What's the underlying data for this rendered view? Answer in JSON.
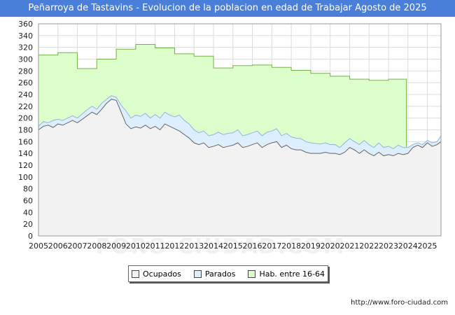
{
  "header": {
    "title": "Peñarroya de Tastavins - Evolucion de la poblacion en edad de Trabajar Agosto de 2025"
  },
  "footer": {
    "url": "http://www.foro-ciudad.com",
    "watermark": "FORO-CIUDAD.COM"
  },
  "colors": {
    "ocupados": "#f2f2f2",
    "parados": "#ddeeff",
    "hab": "#ddffcc",
    "ocupados_line": "#666666",
    "parados_line": "#8fb6e0",
    "hab_line": "#77b04a"
  },
  "chart_data": {
    "type": "area",
    "title": "Peñarroya de Tastavins - Evolucion de la poblacion en edad de Trabajar Agosto de 2025",
    "xlabel": "",
    "ylabel": "",
    "xlim": [
      2005,
      2025.7
    ],
    "ylim": [
      0,
      360
    ],
    "yticks": [
      0,
      20,
      40,
      60,
      80,
      100,
      120,
      140,
      160,
      180,
      200,
      220,
      240,
      260,
      280,
      300,
      320,
      340,
      360
    ],
    "xticks": [
      "2005",
      "2006",
      "2007",
      "2008",
      "2009",
      "2010",
      "2011",
      "2012",
      "2013",
      "2014",
      "2015",
      "2016",
      "2017",
      "2018",
      "2019",
      "2020",
      "2021",
      "2022",
      "2023",
      "2024",
      "2025"
    ],
    "grid": true,
    "legend": [
      {
        "key": "ocupados",
        "label": "Ocupados"
      },
      {
        "key": "parados",
        "label": "Parados"
      },
      {
        "key": "hab",
        "label": "Hab. entre 16-64"
      }
    ],
    "hab_steps": [
      {
        "from": 2005,
        "to": 2006,
        "value": 307
      },
      {
        "from": 2006,
        "to": 2007,
        "value": 311
      },
      {
        "from": 2007,
        "to": 2008,
        "value": 284
      },
      {
        "from": 2008,
        "to": 2009,
        "value": 300
      },
      {
        "from": 2009,
        "to": 2010,
        "value": 317
      },
      {
        "from": 2010,
        "to": 2011,
        "value": 325
      },
      {
        "from": 2011,
        "to": 2012,
        "value": 319
      },
      {
        "from": 2012,
        "to": 2013,
        "value": 309
      },
      {
        "from": 2013,
        "to": 2014,
        "value": 305
      },
      {
        "from": 2014,
        "to": 2015,
        "value": 285
      },
      {
        "from": 2015,
        "to": 2016,
        "value": 289
      },
      {
        "from": 2016,
        "to": 2017,
        "value": 290
      },
      {
        "from": 2017,
        "to": 2018,
        "value": 286
      },
      {
        "from": 2018,
        "to": 2019,
        "value": 281
      },
      {
        "from": 2019,
        "to": 2020,
        "value": 276
      },
      {
        "from": 2020,
        "to": 2021,
        "value": 271
      },
      {
        "from": 2021,
        "to": 2022,
        "value": 266
      },
      {
        "from": 2022,
        "to": 2023,
        "value": 264
      },
      {
        "from": 2023,
        "to": 2023.92,
        "value": 266
      }
    ],
    "parados_series": {
      "x": [
        2005.0,
        2005.25,
        2005.5,
        2005.75,
        2006.0,
        2006.25,
        2006.5,
        2006.75,
        2007.0,
        2007.25,
        2007.5,
        2007.75,
        2008.0,
        2008.25,
        2008.5,
        2008.75,
        2009.0,
        2009.25,
        2009.5,
        2009.75,
        2010.0,
        2010.25,
        2010.5,
        2010.75,
        2011.0,
        2011.25,
        2011.5,
        2011.75,
        2012.0,
        2012.25,
        2012.5,
        2012.75,
        2013.0,
        2013.25,
        2013.5,
        2013.75,
        2014.0,
        2014.25,
        2014.5,
        2014.75,
        2015.0,
        2015.25,
        2015.5,
        2015.75,
        2016.0,
        2016.25,
        2016.5,
        2016.75,
        2017.0,
        2017.25,
        2017.5,
        2017.75,
        2018.0,
        2018.25,
        2018.5,
        2018.75,
        2019.0,
        2019.25,
        2019.5,
        2019.75,
        2020.0,
        2020.25,
        2020.5,
        2020.75,
        2021.0,
        2021.25,
        2021.5,
        2021.75,
        2022.0,
        2022.25,
        2022.5,
        2022.75,
        2023.0,
        2023.25,
        2023.5,
        2023.75,
        2024.0,
        2024.25,
        2024.5,
        2024.75,
        2025.0,
        2025.25,
        2025.5,
        2025.7
      ],
      "values": [
        186,
        194,
        192,
        196,
        198,
        196,
        200,
        204,
        200,
        207,
        214,
        220,
        215,
        225,
        232,
        238,
        235,
        222,
        212,
        200,
        205,
        203,
        208,
        200,
        206,
        200,
        210,
        205,
        202,
        205,
        196,
        190,
        180,
        175,
        178,
        170,
        172,
        176,
        172,
        174,
        175,
        180,
        170,
        172,
        175,
        178,
        170,
        176,
        178,
        182,
        170,
        174,
        168,
        166,
        165,
        160,
        158,
        157,
        156,
        158,
        155,
        155,
        150,
        158,
        165,
        160,
        155,
        162,
        155,
        150,
        158,
        150,
        152,
        148,
        154,
        150,
        150,
        155,
        158,
        155,
        162,
        158,
        160,
        170
      ]
    },
    "ocupados_series": {
      "x": [
        2005.0,
        2005.25,
        2005.5,
        2005.75,
        2006.0,
        2006.25,
        2006.5,
        2006.75,
        2007.0,
        2007.25,
        2007.5,
        2007.75,
        2008.0,
        2008.25,
        2008.5,
        2008.75,
        2009.0,
        2009.25,
        2009.5,
        2009.75,
        2010.0,
        2010.25,
        2010.5,
        2010.75,
        2011.0,
        2011.25,
        2011.5,
        2011.75,
        2012.0,
        2012.25,
        2012.5,
        2012.75,
        2013.0,
        2013.25,
        2013.5,
        2013.75,
        2014.0,
        2014.25,
        2014.5,
        2014.75,
        2015.0,
        2015.25,
        2015.5,
        2015.75,
        2016.0,
        2016.25,
        2016.5,
        2016.75,
        2017.0,
        2017.25,
        2017.5,
        2017.75,
        2018.0,
        2018.25,
        2018.5,
        2018.75,
        2019.0,
        2019.25,
        2019.5,
        2019.75,
        2020.0,
        2020.25,
        2020.5,
        2020.75,
        2021.0,
        2021.25,
        2021.5,
        2021.75,
        2022.0,
        2022.25,
        2022.5,
        2022.75,
        2023.0,
        2023.25,
        2023.5,
        2023.75,
        2024.0,
        2024.25,
        2024.5,
        2024.75,
        2025.0,
        2025.25,
        2025.5,
        2025.7
      ],
      "values": [
        180,
        186,
        188,
        184,
        190,
        188,
        192,
        196,
        192,
        198,
        204,
        210,
        206,
        215,
        225,
        232,
        230,
        210,
        190,
        182,
        185,
        183,
        188,
        182,
        186,
        180,
        190,
        186,
        182,
        178,
        172,
        166,
        158,
        155,
        158,
        150,
        152,
        155,
        150,
        152,
        154,
        158,
        150,
        152,
        155,
        158,
        150,
        155,
        158,
        160,
        150,
        154,
        148,
        146,
        146,
        142,
        140,
        140,
        140,
        142,
        140,
        140,
        138,
        142,
        150,
        146,
        140,
        146,
        140,
        136,
        142,
        136,
        138,
        136,
        140,
        138,
        140,
        150,
        154,
        150,
        158,
        152,
        155,
        160
      ]
    }
  }
}
